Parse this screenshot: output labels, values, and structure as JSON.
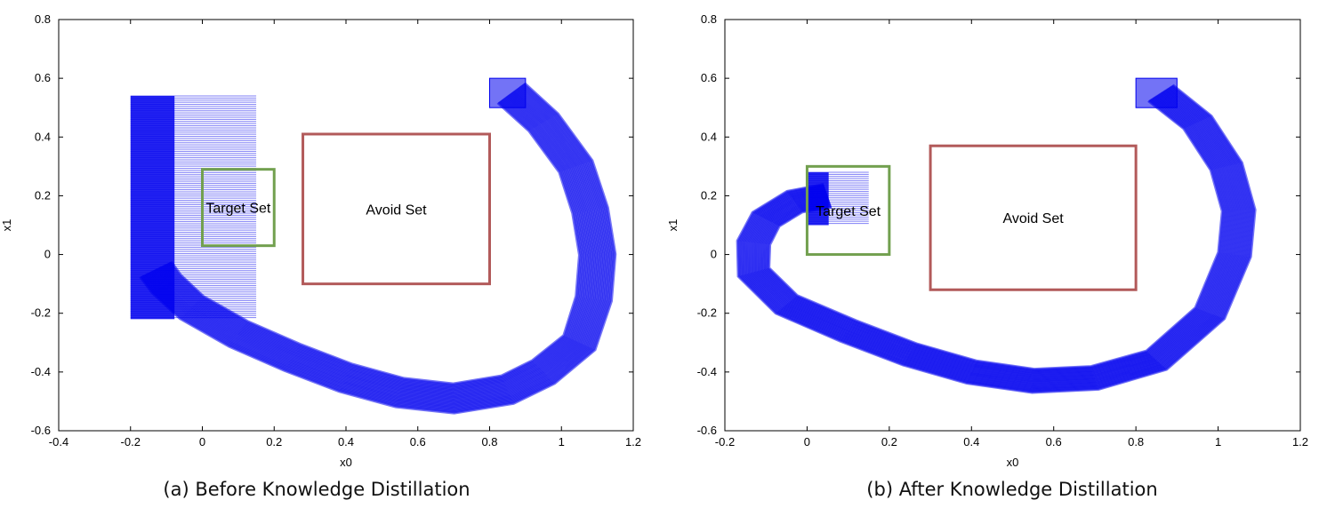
{
  "chart_data": [
    {
      "type": "scatter",
      "caption": "(a) Before Knowledge Distillation",
      "xlabel": "x0",
      "ylabel": "x1",
      "xlim": [
        -0.4,
        1.2
      ],
      "ylim": [
        -0.6,
        0.8
      ],
      "xticks": [
        "-0.4",
        "-0.2",
        "0",
        "0.2",
        "0.4",
        "0.6",
        "0.8",
        "1",
        "1.2"
      ],
      "yticks": [
        "-0.6",
        "-0.4",
        "-0.2",
        "0",
        "0.2",
        "0.4",
        "0.6",
        "0.8"
      ],
      "grid": false,
      "sets": [
        {
          "name": "Target Set",
          "x": [
            0,
            0.2
          ],
          "y": [
            0.03,
            0.29
          ],
          "color": "#72a04f"
        },
        {
          "name": "Avoid Set",
          "x": [
            0.28,
            0.8
          ],
          "y": [
            -0.1,
            0.41
          ],
          "color": "#b25a5a"
        }
      ],
      "reach_color": "#0000ee",
      "reach_start": {
        "x": [
          0.8,
          0.9
        ],
        "y": [
          0.5,
          0.6
        ]
      },
      "reach_end_rect": {
        "x": [
          -0.2,
          0.15
        ],
        "y": [
          -0.22,
          0.54
        ]
      },
      "trajectory_center": {
        "x": [
          0.86,
          0.95,
          1.04,
          1.08,
          1.1,
          1.09,
          1.05,
          0.95,
          0.85,
          0.7,
          0.55,
          0.4,
          0.25,
          0.1,
          -0.03,
          -0.1,
          -0.13
        ],
        "y": [
          0.55,
          0.45,
          0.3,
          0.15,
          0.0,
          -0.15,
          -0.3,
          -0.4,
          -0.46,
          -0.49,
          -0.47,
          -0.42,
          -0.35,
          -0.27,
          -0.18,
          -0.1,
          -0.05
        ]
      },
      "trajectory_halfwidth": 0.05
    },
    {
      "type": "scatter",
      "caption": "(b) After Knowledge Distillation",
      "xlabel": "x0",
      "ylabel": "x1",
      "xlim": [
        -0.2,
        1.2
      ],
      "ylim": [
        -0.6,
        0.8
      ],
      "xticks": [
        "-0.2",
        "0",
        "0.2",
        "0.4",
        "0.6",
        "0.8",
        "1",
        "1.2"
      ],
      "yticks": [
        "-0.6",
        "-0.4",
        "-0.2",
        "0",
        "0.2",
        "0.4",
        "0.6",
        "0.8"
      ],
      "grid": false,
      "sets": [
        {
          "name": "Target Set",
          "x": [
            0,
            0.2
          ],
          "y": [
            0.0,
            0.3
          ],
          "color": "#72a04f"
        },
        {
          "name": "Avoid Set",
          "x": [
            0.3,
            0.8
          ],
          "y": [
            -0.12,
            0.37
          ],
          "color": "#b25a5a"
        }
      ],
      "reach_color": "#0000ee",
      "reach_start": {
        "x": [
          0.8,
          0.9
        ],
        "y": [
          0.5,
          0.6
        ]
      },
      "reach_end_rect": {
        "x": [
          0.0,
          0.15
        ],
        "y": [
          0.1,
          0.28
        ]
      },
      "trajectory_center": {
        "x": [
          0.86,
          0.95,
          1.02,
          1.05,
          1.04,
          0.98,
          0.85,
          0.7,
          0.55,
          0.4,
          0.25,
          0.1,
          -0.05,
          -0.13,
          -0.13,
          -0.1,
          -0.03,
          0.05
        ],
        "y": [
          0.55,
          0.45,
          0.3,
          0.15,
          0.0,
          -0.2,
          -0.36,
          -0.42,
          -0.43,
          -0.4,
          -0.34,
          -0.26,
          -0.17,
          -0.06,
          0.04,
          0.12,
          0.18,
          0.2
        ]
      },
      "trajectory_halfwidth": 0.04
    }
  ]
}
